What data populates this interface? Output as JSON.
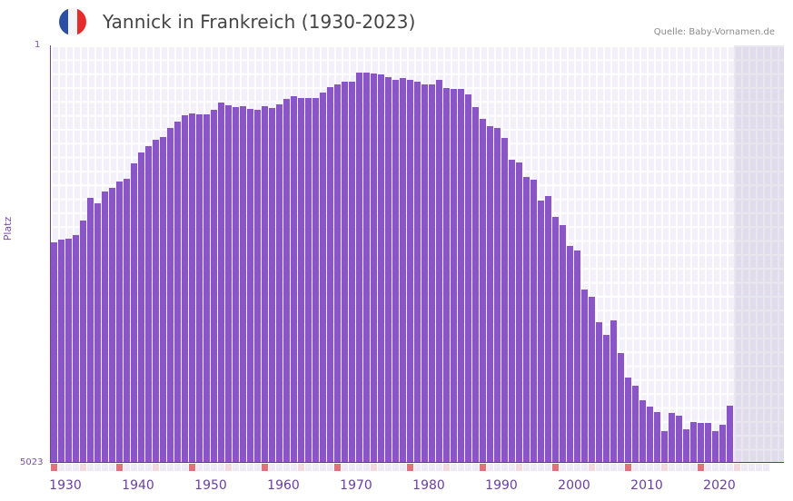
{
  "header": {
    "title": "Yannick in Frankreich (1930-2023)",
    "flag_icon": "france-flag-icon",
    "flag_colors": [
      "#2b4fa5",
      "#f4f4f6",
      "#e62b2b"
    ],
    "source": "Quelle: Baby-Vornamen.de"
  },
  "axis": {
    "y_title": "Platz",
    "y_top_label": "1",
    "y_bottom_label": "5023",
    "x_labels": [
      "1930",
      "1940",
      "1950",
      "1960",
      "1970",
      "1980",
      "1990",
      "2000",
      "2010",
      "2020"
    ]
  },
  "colors": {
    "bar": "#8a55c6",
    "grid_bg": "#f3f0fa",
    "future_shade": "#e3deee",
    "decade_marker": "#e0737a",
    "half_decade_marker": "#f4d8e0",
    "axis_text": "#6a3ea3"
  },
  "chart_data": {
    "type": "bar",
    "title": "Yannick in Frankreich (1930-2023)",
    "xlabel": "",
    "ylabel": "Platz",
    "y_inverted": true,
    "ylim": [
      5023,
      1
    ],
    "grid": true,
    "legend": null,
    "annotations": [
      "Quelle: Baby-Vornamen.de"
    ],
    "x_range": [
      1930,
      2028
    ],
    "categories": [
      1930,
      1931,
      1932,
      1933,
      1934,
      1935,
      1936,
      1937,
      1938,
      1939,
      1940,
      1941,
      1942,
      1943,
      1944,
      1945,
      1946,
      1947,
      1948,
      1949,
      1950,
      1951,
      1952,
      1953,
      1954,
      1955,
      1956,
      1957,
      1958,
      1959,
      1960,
      1961,
      1962,
      1963,
      1964,
      1965,
      1966,
      1967,
      1968,
      1969,
      1970,
      1971,
      1972,
      1973,
      1974,
      1975,
      1976,
      1977,
      1978,
      1979,
      1980,
      1981,
      1982,
      1983,
      1984,
      1985,
      1986,
      1987,
      1988,
      1989,
      1990,
      1991,
      1992,
      1993,
      1994,
      1995,
      1996,
      1997,
      1998,
      1999,
      2000,
      2001,
      2002,
      2003,
      2004,
      2005,
      2006,
      2007,
      2008,
      2009,
      2010,
      2011,
      2012,
      2013,
      2014,
      2015,
      2016,
      2017,
      2018,
      2019,
      2020,
      2021,
      2022,
      2023
    ],
    "values": [
      2370,
      2340,
      2330,
      2280,
      2110,
      1830,
      1900,
      1760,
      1720,
      1640,
      1610,
      1420,
      1290,
      1210,
      1140,
      1100,
      990,
      920,
      840,
      820,
      830,
      830,
      780,
      690,
      720,
      740,
      730,
      760,
      780,
      730,
      750,
      710,
      640,
      610,
      630,
      630,
      630,
      570,
      500,
      470,
      440,
      440,
      330,
      330,
      340,
      350,
      380,
      420,
      390,
      420,
      440,
      470,
      470,
      420,
      510,
      520,
      530,
      590,
      740,
      880,
      970,
      990,
      1110,
      1380,
      1410,
      1580,
      1620,
      1870,
      1810,
      2060,
      2160,
      2410,
      2470,
      2940,
      3020,
      3330,
      3480,
      3310,
      3700,
      4000,
      4090,
      4270,
      4350,
      4410,
      4640,
      4420,
      4460,
      4620,
      4530,
      4540,
      4540,
      4640,
      4560,
      4330
    ]
  }
}
